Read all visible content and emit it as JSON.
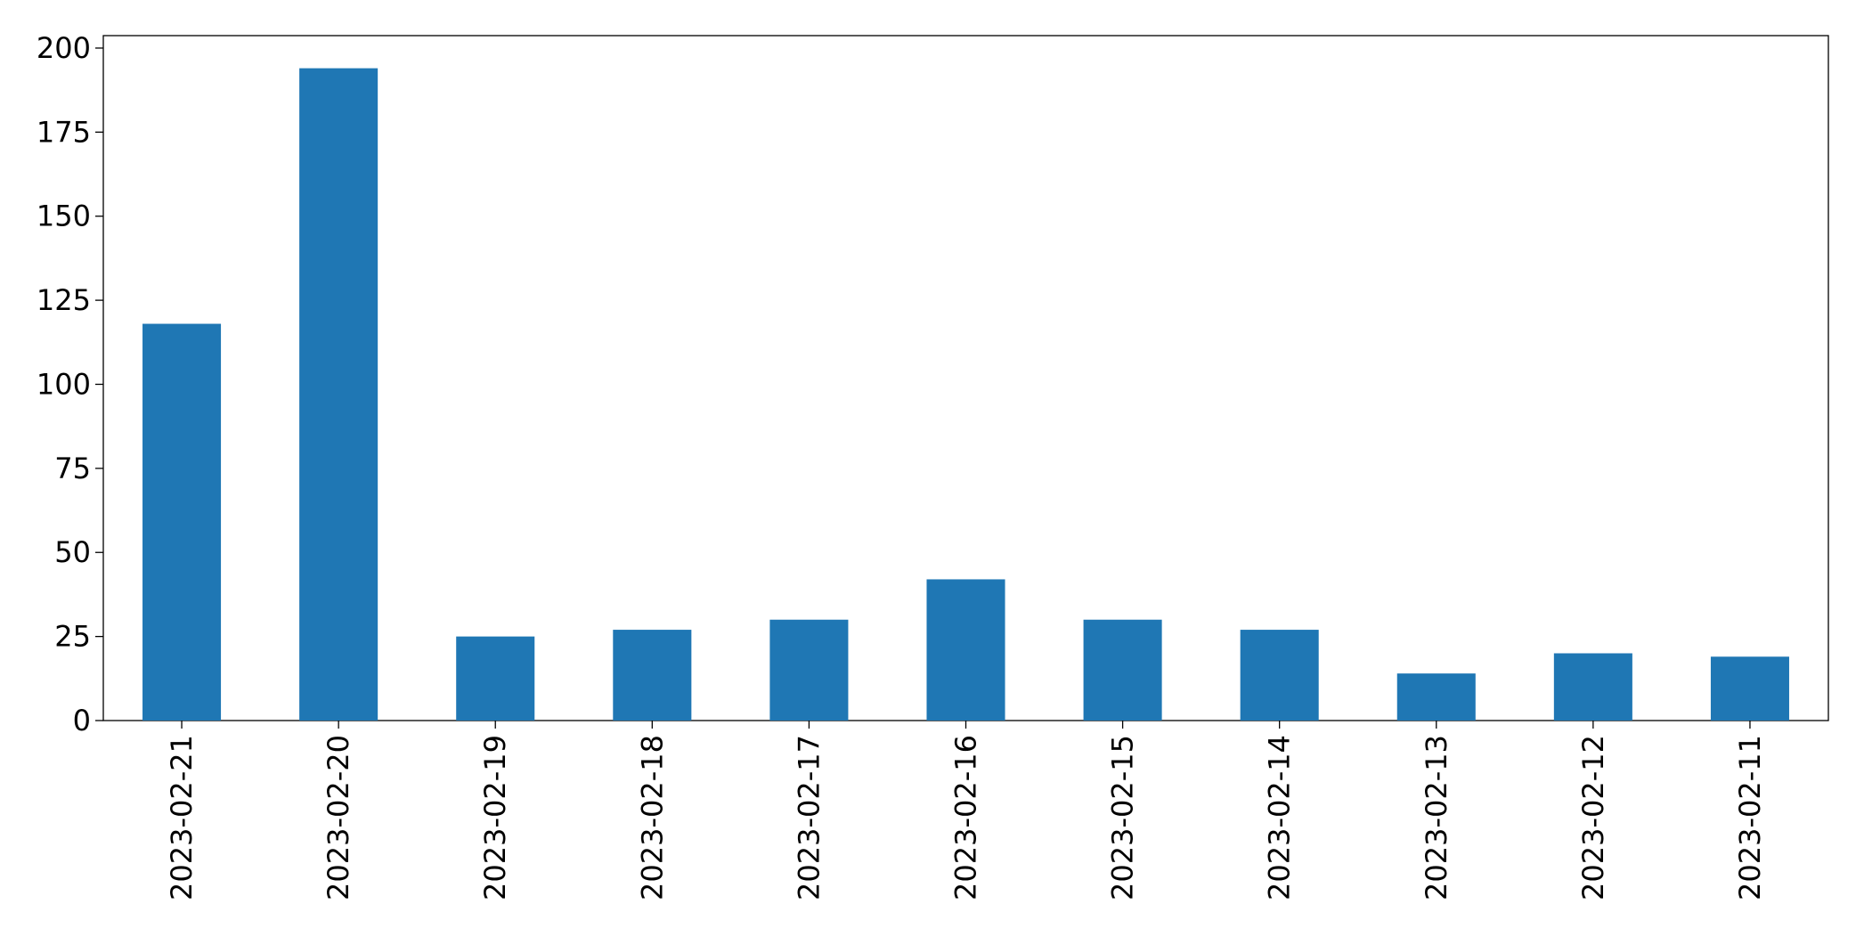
{
  "chart_data": {
    "type": "bar",
    "categories": [
      "2023-02-21",
      "2023-02-20",
      "2023-02-19",
      "2023-02-18",
      "2023-02-17",
      "2023-02-16",
      "2023-02-15",
      "2023-02-14",
      "2023-02-13",
      "2023-02-12",
      "2023-02-11"
    ],
    "values": [
      118,
      194,
      25,
      27,
      30,
      42,
      30,
      27,
      14,
      20,
      19
    ],
    "color": "#1f77b4",
    "ylim": [
      0,
      203.7
    ],
    "yticks": [
      0,
      25,
      50,
      75,
      100,
      125,
      150,
      175,
      200
    ],
    "grid": false
  }
}
